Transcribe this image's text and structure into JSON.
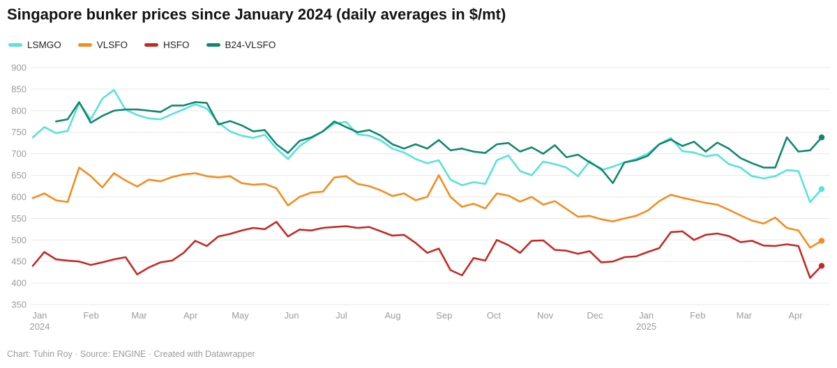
{
  "header": {
    "title": "Singapore bunker prices since January 2024 (daily averages in $/mt)"
  },
  "footer": {
    "credit": "Chart: Tuhin Roy · Source: ENGINE · Created with Datawrapper"
  },
  "chart_data": {
    "type": "line",
    "title": "Singapore bunker prices since January 2024 (daily averages in $/mt)",
    "xlabel": "",
    "ylabel": "",
    "ylim": [
      350,
      900
    ],
    "grid": true,
    "legend_position": "top-left",
    "y_ticks": [
      900,
      850,
      800,
      750,
      700,
      650,
      600,
      550,
      500,
      450,
      400,
      350
    ],
    "x_ticks": [
      {
        "label": "Jan",
        "year": "2024",
        "date": "2024-01-01"
      },
      {
        "label": "Feb",
        "date": "2024-02-01"
      },
      {
        "label": "Mar",
        "date": "2024-03-01"
      },
      {
        "label": "Apr",
        "date": "2024-04-01"
      },
      {
        "label": "May",
        "date": "2024-05-01"
      },
      {
        "label": "Jun",
        "date": "2024-06-01"
      },
      {
        "label": "Jul",
        "date": "2024-07-01"
      },
      {
        "label": "Aug",
        "date": "2024-08-01"
      },
      {
        "label": "Sep",
        "date": "2024-09-01"
      },
      {
        "label": "Oct",
        "date": "2024-10-01"
      },
      {
        "label": "Nov",
        "date": "2024-11-01"
      },
      {
        "label": "Dec",
        "date": "2024-12-01"
      },
      {
        "label": "Jan",
        "year": "2025",
        "date": "2025-01-01"
      },
      {
        "label": "Feb",
        "date": "2025-02-01"
      },
      {
        "label": "Mar",
        "date": "2025-03-01"
      },
      {
        "label": "Apr",
        "date": "2025-04-01"
      }
    ],
    "x": [
      "2024-01-01",
      "2024-01-08",
      "2024-01-15",
      "2024-01-22",
      "2024-01-29",
      "2024-02-05",
      "2024-02-12",
      "2024-02-19",
      "2024-02-26",
      "2024-03-04",
      "2024-03-11",
      "2024-03-18",
      "2024-03-25",
      "2024-04-01",
      "2024-04-08",
      "2024-04-15",
      "2024-04-22",
      "2024-04-29",
      "2024-05-06",
      "2024-05-13",
      "2024-05-20",
      "2024-05-27",
      "2024-06-03",
      "2024-06-10",
      "2024-06-17",
      "2024-06-24",
      "2024-07-01",
      "2024-07-08",
      "2024-07-15",
      "2024-07-22",
      "2024-07-29",
      "2024-08-05",
      "2024-08-12",
      "2024-08-19",
      "2024-08-26",
      "2024-09-02",
      "2024-09-09",
      "2024-09-16",
      "2024-09-23",
      "2024-09-30",
      "2024-10-07",
      "2024-10-14",
      "2024-10-21",
      "2024-10-28",
      "2024-11-04",
      "2024-11-11",
      "2024-11-18",
      "2024-11-25",
      "2024-12-02",
      "2024-12-09",
      "2024-12-16",
      "2024-12-23",
      "2024-12-30",
      "2025-01-06",
      "2025-01-13",
      "2025-01-20",
      "2025-01-27",
      "2025-02-03",
      "2025-02-10",
      "2025-02-17",
      "2025-02-24",
      "2025-03-03",
      "2025-03-10",
      "2025-03-17",
      "2025-03-24",
      "2025-03-31",
      "2025-04-07",
      "2025-04-14",
      "2025-04-21"
    ],
    "series": [
      {
        "name": "LSMGO",
        "color": "#57e2da",
        "values": [
          738,
          762,
          748,
          753,
          818,
          780,
          828,
          848,
          802,
          790,
          782,
          780,
          792,
          803,
          815,
          805,
          772,
          752,
          742,
          737,
          744,
          712,
          688,
          718,
          736,
          752,
          770,
          774,
          745,
          742,
          731,
          712,
          703,
          688,
          678,
          685,
          640,
          627,
          634,
          630,
          685,
          696,
          660,
          650,
          682,
          676,
          668,
          648,
          683,
          662,
          670,
          680,
          688,
          700,
          722,
          737,
          706,
          703,
          694,
          698,
          676,
          668,
          648,
          643,
          648,
          662,
          660,
          588,
          618
        ]
      },
      {
        "name": "VLSFO",
        "color": "#f28d1d",
        "values": [
          597,
          608,
          592,
          588,
          668,
          648,
          622,
          655,
          638,
          624,
          640,
          636,
          646,
          652,
          655,
          648,
          645,
          648,
          632,
          628,
          630,
          620,
          580,
          600,
          610,
          612,
          645,
          648,
          630,
          625,
          615,
          602,
          608,
          592,
          600,
          650,
          600,
          577,
          584,
          573,
          608,
          603,
          589,
          600,
          582,
          590,
          572,
          554,
          556,
          548,
          543,
          550,
          556,
          568,
          590,
          605,
          598,
          592,
          586,
          582,
          570,
          557,
          545,
          538,
          552,
          528,
          522,
          482,
          498
        ]
      },
      {
        "name": "HSFO",
        "color": "#c22a24",
        "values": [
          440,
          472,
          455,
          452,
          450,
          442,
          448,
          455,
          460,
          420,
          436,
          448,
          452,
          470,
          498,
          486,
          508,
          514,
          522,
          528,
          525,
          542,
          508,
          524,
          522,
          528,
          530,
          532,
          528,
          530,
          520,
          510,
          512,
          493,
          470,
          480,
          430,
          418,
          458,
          452,
          500,
          488,
          470,
          498,
          499,
          477,
          475,
          468,
          474,
          448,
          450,
          460,
          462,
          472,
          481,
          518,
          520,
          500,
          512,
          515,
          509,
          495,
          498,
          487,
          486,
          490,
          486,
          412,
          440
        ]
      },
      {
        "name": "B24-VLSFO",
        "color": "#10876c",
        "values": [
          null,
          null,
          775,
          780,
          820,
          772,
          788,
          800,
          803,
          803,
          800,
          797,
          812,
          812,
          820,
          818,
          768,
          776,
          766,
          752,
          755,
          722,
          702,
          730,
          738,
          752,
          775,
          762,
          750,
          755,
          742,
          722,
          712,
          722,
          712,
          732,
          708,
          712,
          705,
          702,
          722,
          725,
          705,
          715,
          700,
          720,
          692,
          698,
          680,
          665,
          632,
          680,
          685,
          695,
          722,
          733,
          718,
          728,
          705,
          726,
          712,
          690,
          678,
          668,
          668,
          738,
          705,
          708,
          738
        ]
      }
    ]
  }
}
